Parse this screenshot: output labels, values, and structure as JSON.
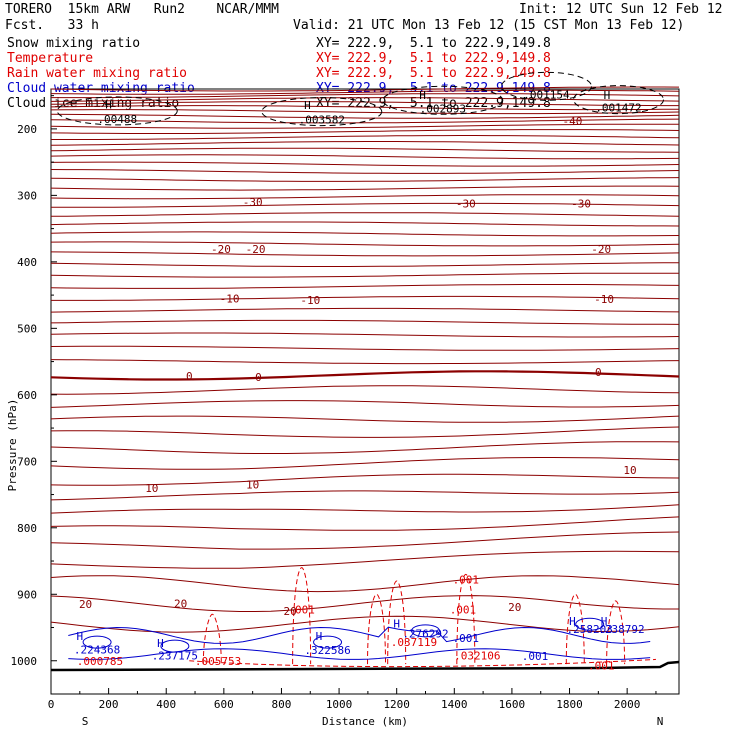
{
  "header": {
    "left": "TORERO  15km ARW   Run2    NCAR/MMM",
    "fcst": "Fcst.   33 h",
    "init": "Init: 12 UTC Sun 12 Feb 12",
    "valid": "Valid: 21 UTC Mon 13 Feb 12 (15 CST Mon 13 Feb 12)"
  },
  "colors": {
    "temperature": "#8b0000",
    "rain": "#e00000",
    "cloud_water": "#0000cc",
    "cloud_ice": "#000000",
    "snow": "#000000"
  },
  "chart_data": {
    "type": "cross-section contour",
    "title": "TORERO 15km ARW Run2 NCAR/MMM",
    "xlabel": "Distance (km)",
    "ylabel": "Pressure (hPa)",
    "xlim": [
      0,
      2180
    ],
    "ylim": [
      1050,
      140
    ],
    "x_ticks": [
      0,
      200,
      400,
      600,
      800,
      1000,
      1200,
      1400,
      1600,
      1800,
      2000
    ],
    "y_ticks": [
      200,
      300,
      400,
      500,
      600,
      700,
      800,
      900,
      1000
    ],
    "left_end_label": "S",
    "right_end_label": "N",
    "legend": [
      {
        "name": "Snow mixing ratio",
        "xy": "XY= 222.9,  5.1 to 222.9,149.8",
        "color": "#000000"
      },
      {
        "name": "Temperature",
        "xy": "XY= 222.9,  5.1 to 222.9,149.8",
        "color": "#e00000"
      },
      {
        "name": "Rain water mixing ratio",
        "xy": "XY= 222.9,  5.1 to 222.9,149.8",
        "color": "#e00000"
      },
      {
        "name": "Cloud water mixing ratio",
        "xy": "XY= 222.9,  5.1 to 222.9,149.8",
        "color": "#0000cc"
      },
      {
        "name": "Cloud ice mixing ratio",
        "xy": "XY= 222.9,  5.1 to 222.9,149.8",
        "color": "#000000"
      }
    ],
    "temperature_isotherms_label_values": [
      -40,
      -30,
      -20,
      -10,
      0,
      10,
      20
    ],
    "temperature_labels": [
      {
        "text": "-40",
        "x": 1810,
        "p": 188
      },
      {
        "text": "-30",
        "x": 700,
        "p": 310
      },
      {
        "text": "-30",
        "x": 1440,
        "p": 312
      },
      {
        "text": "-30",
        "x": 1840,
        "p": 312
      },
      {
        "text": "-20",
        "x": 590,
        "p": 381
      },
      {
        "text": "-20",
        "x": 710,
        "p": 381
      },
      {
        "text": "-20",
        "x": 1910,
        "p": 381
      },
      {
        "text": "-10",
        "x": 620,
        "p": 455
      },
      {
        "text": "-10",
        "x": 900,
        "p": 457
      },
      {
        "text": "-10",
        "x": 1920,
        "p": 456
      },
      {
        "text": "0",
        "x": 480,
        "p": 572
      },
      {
        "text": "0",
        "x": 720,
        "p": 573
      },
      {
        "text": "0",
        "x": 1900,
        "p": 566
      },
      {
        "text": "10",
        "x": 350,
        "p": 740
      },
      {
        "text": "10",
        "x": 700,
        "p": 735
      },
      {
        "text": "10",
        "x": 2010,
        "p": 713
      },
      {
        "text": "20",
        "x": 120,
        "p": 915
      },
      {
        "text": "20",
        "x": 450,
        "p": 914
      },
      {
        "text": "20",
        "x": 830,
        "p": 925
      },
      {
        "text": "20",
        "x": 1610,
        "p": 919
      }
    ],
    "cloud_ice_maxima": [
      {
        "text": ".00488",
        "x": 230,
        "p": 185
      },
      {
        "text": ".003582",
        "x": 940,
        "p": 186
      },
      {
        "text": ".002893",
        "x": 1360,
        "p": 169
      },
      {
        "text": ".001154",
        "x": 1720,
        "p": 148
      },
      {
        "text": ".001472",
        "x": 1970,
        "p": 168
      }
    ],
    "rain_labels": [
      {
        "text": ".001",
        "x": 1440,
        "p": 878
      },
      {
        "text": ".001",
        "x": 870,
        "p": 923
      },
      {
        "text": ".001",
        "x": 1430,
        "p": 923
      },
      {
        "text": ".000785",
        "x": 170,
        "p": 1000
      },
      {
        "text": ".005753",
        "x": 580,
        "p": 1000
      },
      {
        "text": ".037119",
        "x": 1260,
        "p": 972
      },
      {
        "text": ".032106",
        "x": 1480,
        "p": 992
      },
      {
        "text": ".001",
        "x": 1910,
        "p": 1007
      }
    ],
    "cloud_water_labels": [
      {
        "text": ".224368",
        "x": 160,
        "p": 983
      },
      {
        "text": ".237175",
        "x": 430,
        "p": 992
      },
      {
        "text": ".322586",
        "x": 960,
        "p": 984
      },
      {
        "text": ".276292",
        "x": 1300,
        "p": 959
      },
      {
        "text": ".001",
        "x": 1440,
        "p": 966
      },
      {
        "text": ".001",
        "x": 1680,
        "p": 993
      },
      {
        "text": ".258203",
        "x": 1870,
        "p": 952
      },
      {
        "text": ".238792",
        "x": 1980,
        "p": 952
      }
    ],
    "high_markers": [
      {
        "text": "H",
        "x": 200,
        "p": 163,
        "series": "ice"
      },
      {
        "text": "H",
        "x": 890,
        "p": 164,
        "series": "ice"
      },
      {
        "text": "H",
        "x": 1290,
        "p": 149,
        "series": "ice"
      },
      {
        "text": "H",
        "x": 1930,
        "p": 149,
        "series": "ice"
      },
      {
        "text": "H",
        "x": 100,
        "p": 963,
        "series": "cloud"
      },
      {
        "text": "H",
        "x": 380,
        "p": 973,
        "series": "cloud"
      },
      {
        "text": "H",
        "x": 930,
        "p": 963,
        "series": "cloud"
      },
      {
        "text": "H",
        "x": 1200,
        "p": 944,
        "series": "cloud"
      },
      {
        "text": "H",
        "x": 1810,
        "p": 940,
        "series": "cloud"
      },
      {
        "text": "H",
        "x": 1920,
        "p": 940,
        "series": "cloud"
      }
    ]
  }
}
